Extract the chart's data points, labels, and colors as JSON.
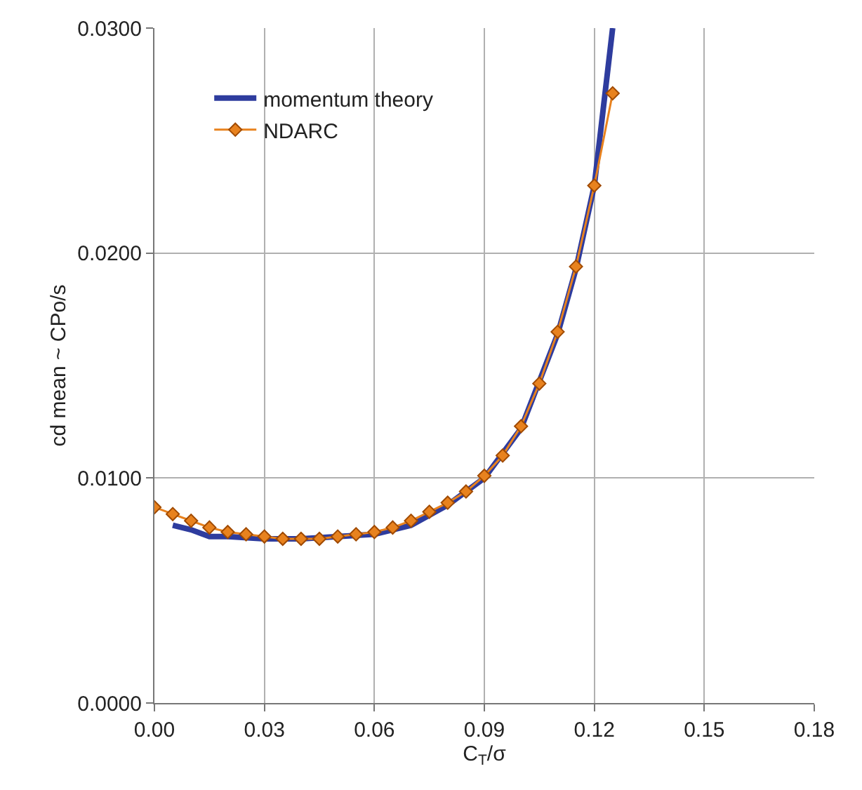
{
  "chart_data": {
    "type": "line",
    "xlabel": "C$_{T}$/σ",
    "ylabel": "cd mean ~ CPo/s",
    "xlim": [
      0,
      0.18
    ],
    "xticks": [
      {
        "value": 0,
        "label": "0.00"
      },
      {
        "value": 0.03,
        "label": "0.03"
      },
      {
        "value": 0.06,
        "label": "0.06"
      },
      {
        "value": 0.09,
        "label": "0.09"
      },
      {
        "value": 0.12,
        "label": "0.12"
      },
      {
        "value": 0.15,
        "label": "0.15"
      },
      {
        "value": 0.18,
        "label": "0.18"
      }
    ],
    "ylim": [
      0,
      0.03
    ],
    "yticks": [
      {
        "value": 0,
        "label": "0.0000"
      },
      {
        "value": 0.01,
        "label": "0.0100"
      },
      {
        "value": 0.02,
        "label": "0.0200"
      },
      {
        "value": 0.03,
        "label": "0.0300"
      }
    ],
    "grid": true,
    "legend": "top left",
    "series": [
      {
        "name": "momentum theory",
        "color": "#2e3c9e",
        "marker": "none",
        "x": [
          0.005,
          0.01,
          0.015,
          0.02,
          0.03,
          0.04,
          0.05,
          0.06,
          0.07,
          0.08,
          0.09,
          0.1,
          0.11,
          0.115,
          0.12,
          0.125
        ],
        "values": [
          0.0079,
          0.0077,
          0.0074,
          0.0074,
          0.0073,
          0.0073,
          0.0074,
          0.0075,
          0.0079,
          0.0088,
          0.01,
          0.0122,
          0.0164,
          0.0193,
          0.023,
          0.03
        ]
      },
      {
        "name": "NDARC",
        "color": "#e8821e",
        "marker": "diamond",
        "x": [
          0,
          0.005,
          0.01,
          0.015,
          0.02,
          0.025,
          0.03,
          0.035,
          0.04,
          0.045,
          0.05,
          0.055,
          0.06,
          0.065,
          0.07,
          0.075,
          0.08,
          0.085,
          0.09,
          0.095,
          0.1,
          0.105,
          0.11,
          0.115,
          0.12,
          0.125
        ],
        "values": [
          0.0087,
          0.0084,
          0.0081,
          0.0078,
          0.0076,
          0.0075,
          0.0074,
          0.0073,
          0.0073,
          0.0073,
          0.0074,
          0.0075,
          0.0076,
          0.0078,
          0.0081,
          0.0085,
          0.0089,
          0.0094,
          0.0101,
          0.011,
          0.0123,
          0.0142,
          0.0165,
          0.0194,
          0.023,
          0.0271
        ]
      }
    ]
  }
}
